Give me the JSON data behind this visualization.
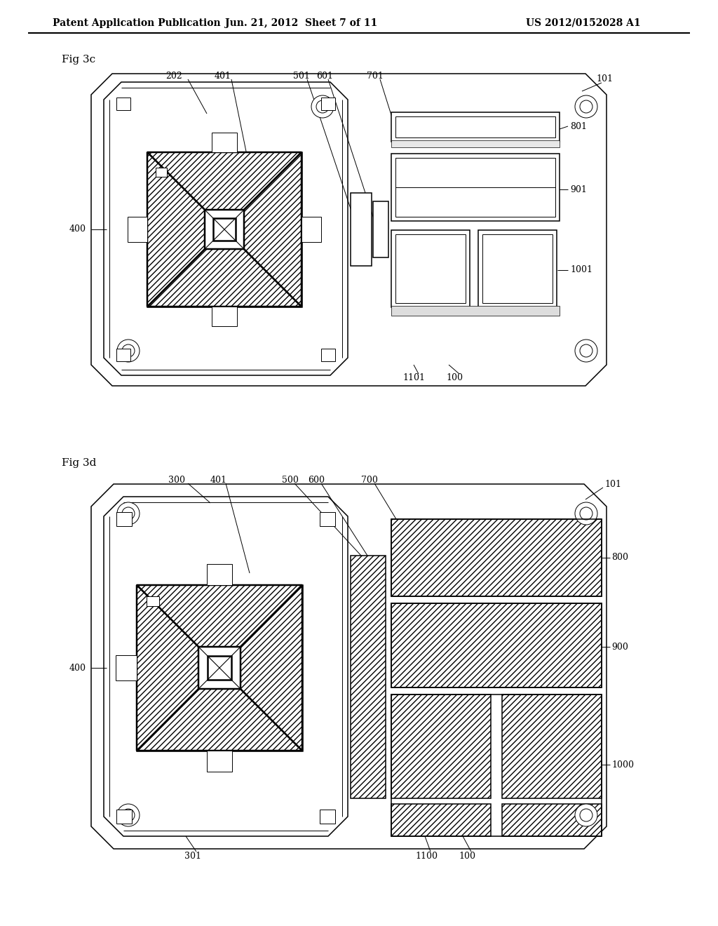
{
  "header_left": "Patent Application Publication",
  "header_mid": "Jun. 21, 2012  Sheet 7 of 11",
  "header_right": "US 2012/0152028 A1",
  "fig3c_label": "Fig 3c",
  "fig3d_label": "Fig 3d",
  "bg_color": "#ffffff",
  "line_color": "#000000"
}
